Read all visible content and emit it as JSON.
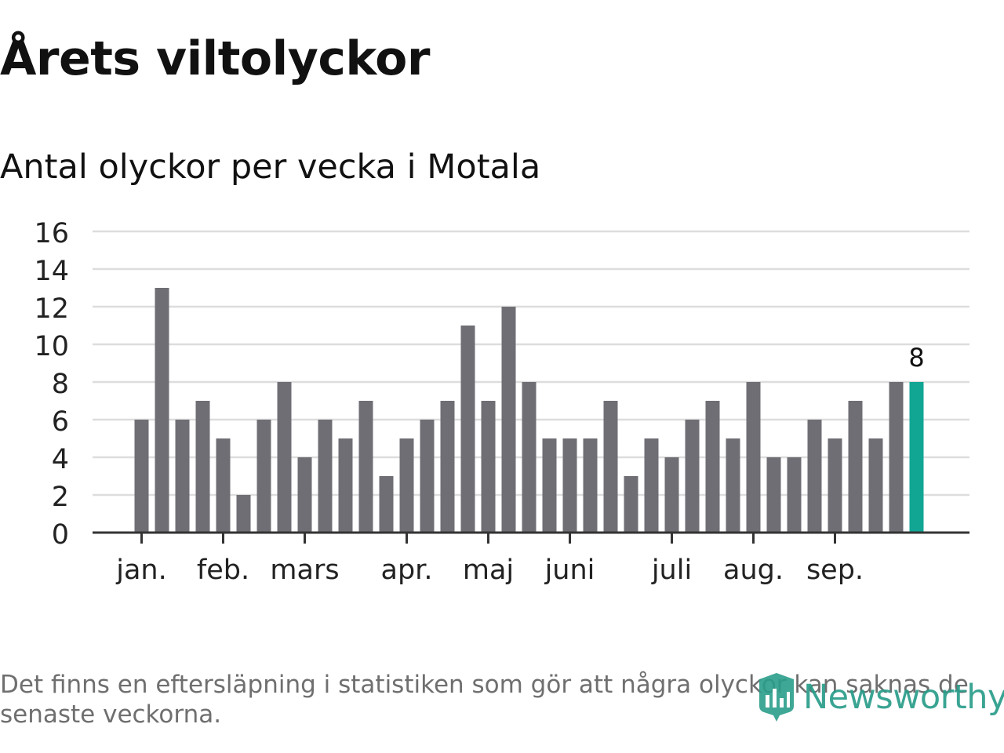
{
  "title": "Årets viltolyckor",
  "subtitle": "Antal olyckor per vecka i Motala",
  "footnote": "Det finns en eftersläpning i statistiken som gör att några olyckor kan saknas de senaste veckorna.",
  "logo": {
    "text": "Newsworthy",
    "icon": "newsworthy-logo-icon"
  },
  "colors": {
    "bar": "#6f6e74",
    "highlight": "#11a594",
    "grid": "#dddddd",
    "axis": "#333333",
    "brand": "#2a9d8a"
  },
  "chart_data": {
    "type": "bar",
    "title": "Antal olyckor per vecka i Motala",
    "xlabel": "",
    "ylabel": "",
    "ylim": [
      0,
      16
    ],
    "yticks": [
      0,
      2,
      4,
      6,
      8,
      10,
      12,
      14,
      16
    ],
    "grid": true,
    "values": [
      6,
      13,
      6,
      7,
      5,
      2,
      6,
      8,
      4,
      6,
      5,
      7,
      3,
      5,
      6,
      7,
      11,
      7,
      12,
      8,
      5,
      5,
      5,
      7,
      3,
      5,
      4,
      6,
      7,
      5,
      8,
      4,
      4,
      6,
      5,
      7,
      5,
      8,
      8
    ],
    "highlight_index": 38,
    "highlight_label": "8",
    "month_ticks": [
      {
        "label": "jan.",
        "index": 0
      },
      {
        "label": "feb.",
        "index": 4
      },
      {
        "label": "mars",
        "index": 8
      },
      {
        "label": "apr.",
        "index": 13
      },
      {
        "label": "maj",
        "index": 17
      },
      {
        "label": "juni",
        "index": 21
      },
      {
        "label": "juli",
        "index": 26
      },
      {
        "label": "aug.",
        "index": 30
      },
      {
        "label": "sep.",
        "index": 34
      }
    ]
  }
}
